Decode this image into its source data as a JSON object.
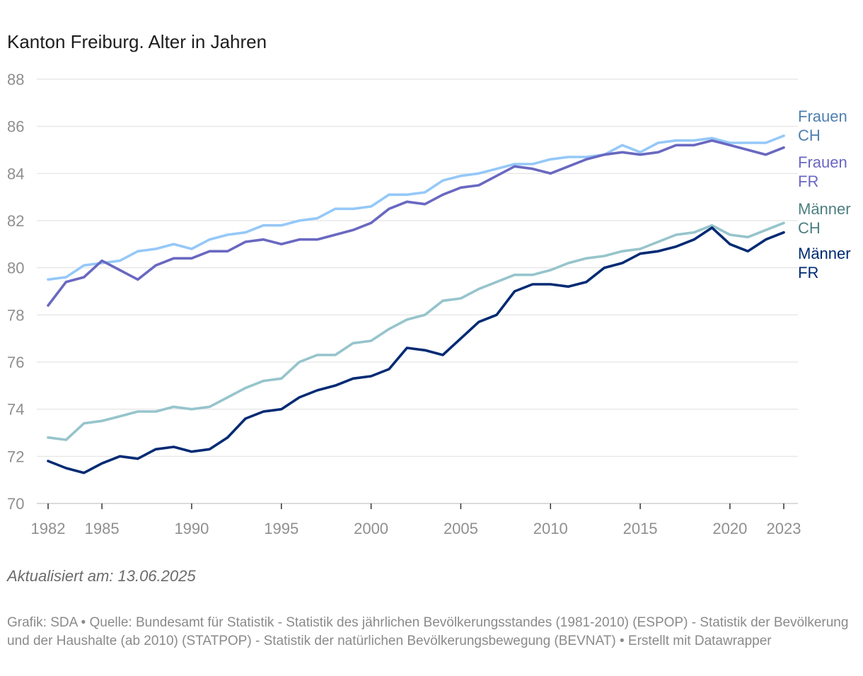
{
  "chart_data": {
    "type": "line",
    "title": "Kanton Freiburg. Alter in Jahren",
    "xlabel": "",
    "ylabel": "",
    "x": [
      1982,
      1983,
      1984,
      1985,
      1986,
      1987,
      1988,
      1989,
      1990,
      1991,
      1992,
      1993,
      1994,
      1995,
      1996,
      1997,
      1998,
      1999,
      2000,
      2001,
      2002,
      2003,
      2004,
      2005,
      2006,
      2007,
      2008,
      2009,
      2010,
      2011,
      2012,
      2013,
      2014,
      2015,
      2016,
      2017,
      2018,
      2019,
      2020,
      2021,
      2022,
      2023
    ],
    "xlim": [
      1982,
      2023
    ],
    "ylim": [
      70,
      88
    ],
    "x_ticks": [
      1982,
      1985,
      1990,
      1995,
      2000,
      2005,
      2010,
      2015,
      2020,
      2023
    ],
    "y_ticks": [
      70,
      72,
      74,
      76,
      78,
      80,
      82,
      84,
      86,
      88
    ],
    "grid": true,
    "series": [
      {
        "name": "Frauen CH",
        "label_lines": [
          "Frauen",
          "CH"
        ],
        "color": "#95c8f8",
        "label_color": "#4f7fae",
        "values": [
          79.5,
          79.6,
          80.1,
          80.2,
          80.3,
          80.7,
          80.8,
          81.0,
          80.8,
          81.2,
          81.4,
          81.5,
          81.8,
          81.8,
          82.0,
          82.1,
          82.5,
          82.5,
          82.6,
          83.1,
          83.1,
          83.2,
          83.7,
          83.9,
          84.0,
          84.2,
          84.4,
          84.4,
          84.6,
          84.7,
          84.7,
          84.8,
          85.2,
          84.9,
          85.3,
          85.4,
          85.4,
          85.5,
          85.3,
          85.3,
          85.3,
          85.6
        ]
      },
      {
        "name": "Frauen FR",
        "label_lines": [
          "Frauen",
          "FR"
        ],
        "color": "#6968c1",
        "label_color": "#6968c1",
        "values": [
          78.4,
          79.4,
          79.6,
          80.3,
          79.9,
          79.5,
          80.1,
          80.4,
          80.4,
          80.7,
          80.7,
          81.1,
          81.2,
          81.0,
          81.2,
          81.2,
          81.4,
          81.6,
          81.9,
          82.5,
          82.8,
          82.7,
          83.1,
          83.4,
          83.5,
          83.9,
          84.3,
          84.2,
          84.0,
          84.3,
          84.6,
          84.8,
          84.9,
          84.8,
          84.9,
          85.2,
          85.2,
          85.4,
          85.2,
          85.0,
          84.8,
          85.1
        ]
      },
      {
        "name": "Männer CH",
        "label_lines": [
          "Männer",
          "CH"
        ],
        "color": "#96c4cc",
        "label_color": "#4d7f80",
        "values": [
          72.8,
          72.7,
          73.4,
          73.5,
          73.7,
          73.9,
          73.9,
          74.1,
          74.0,
          74.1,
          74.5,
          74.9,
          75.2,
          75.3,
          76.0,
          76.3,
          76.3,
          76.8,
          76.9,
          77.4,
          77.8,
          78.0,
          78.6,
          78.7,
          79.1,
          79.4,
          79.7,
          79.7,
          79.9,
          80.2,
          80.4,
          80.5,
          80.7,
          80.8,
          81.1,
          81.4,
          81.5,
          81.8,
          81.4,
          81.3,
          81.6,
          81.9
        ]
      },
      {
        "name": "Männer FR",
        "label_lines": [
          "Männer",
          "FR"
        ],
        "color": "#002a74",
        "label_color": "#002a74",
        "values": [
          71.8,
          71.5,
          71.3,
          71.7,
          72.0,
          71.9,
          72.3,
          72.4,
          72.2,
          72.3,
          72.8,
          73.6,
          73.9,
          74.0,
          74.5,
          74.8,
          75.0,
          75.3,
          75.4,
          75.7,
          76.6,
          76.5,
          76.3,
          77.0,
          77.7,
          78.0,
          79.0,
          79.3,
          79.3,
          79.2,
          79.4,
          80.0,
          80.2,
          80.6,
          80.7,
          80.9,
          81.2,
          81.7,
          81.0,
          80.7,
          81.2,
          81.5
        ]
      }
    ]
  },
  "updated": "Aktualisiert am: 13.06.2025",
  "footer": {
    "grafik_label": "Grafik:",
    "grafik": "SDA",
    "separator": "•",
    "quelle_label": "Quelle:",
    "quelle": "Bundesamt für Statistik - Statistik des jährlichen Bevölkerungsstandes (1981-2010) (ESPOP) - Statistik der Bevölkerung und der Haushalte (ab 2010) (STATPOP) - Statistik der natürlichen Bevölkerungsbewegung (BEVNAT)",
    "created": "Erstellt mit Datawrapper"
  }
}
